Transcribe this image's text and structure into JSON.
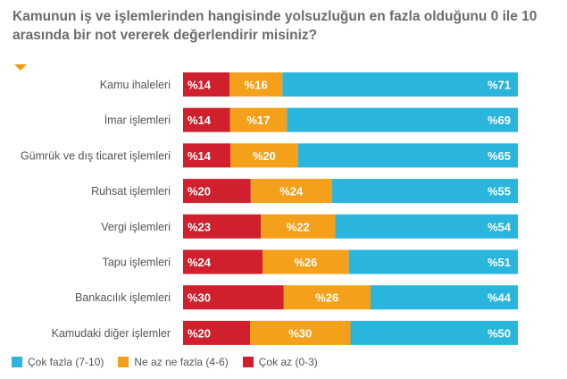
{
  "title_lines": [
    "Kamunun iş ve işlemlerinden hangisinde yolsuzluğun en fazla olduğunu 0 ile 10",
    "arasında bir not vererek değerlendirir misiniz?"
  ],
  "colors": {
    "low": "#d0202e",
    "mid": "#f5a01a",
    "high": "#29b5dc",
    "marker": "#f39c12"
  },
  "chart_data": {
    "type": "bar",
    "orientation": "horizontal",
    "stacked": true,
    "value_prefix": "%",
    "title": "Kamunun iş ve işlemlerinden hangisinde yolsuzluğun en fazla olduğunu 0 ile 10 arasında bir not vererek değerlendirir misiniz?",
    "categories": [
      "Kamu ihaleleri",
      "İmar işlemleri",
      "Gümrük ve dış ticaret işlemleri",
      "Ruhsat işlemleri",
      "Vergi işlemleri",
      "Tapu işlemleri",
      "Bankacılık işlemleri",
      "Kamudaki diğer işlemler"
    ],
    "series": [
      {
        "name": "Çok az (0-3)",
        "color": "#d0202e",
        "values": [
          14,
          14,
          14,
          20,
          23,
          24,
          30,
          20
        ]
      },
      {
        "name": "Ne az ne fazla (4-6)",
        "color": "#f5a01a",
        "values": [
          16,
          17,
          20,
          24,
          22,
          26,
          26,
          30
        ]
      },
      {
        "name": "Çok fazla (7-10)",
        "color": "#29b5dc",
        "values": [
          71,
          69,
          65,
          55,
          54,
          51,
          44,
          50
        ]
      }
    ],
    "legend_order": [
      2,
      1,
      0
    ],
    "legend_position": "bottom-left",
    "grid": false
  }
}
